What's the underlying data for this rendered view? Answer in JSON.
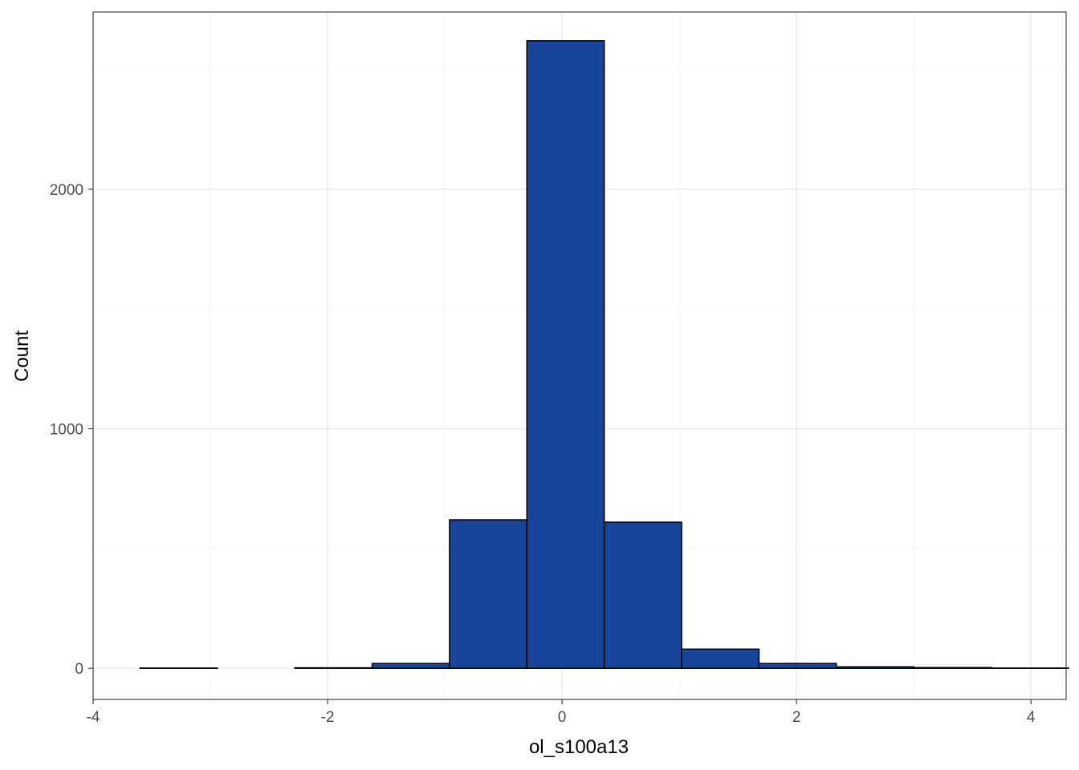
{
  "chart_data": {
    "type": "bar",
    "title": "",
    "xlabel": "ol_s100a13",
    "ylabel": "Count",
    "xlim": [
      -4,
      4.3
    ],
    "ylim": [
      -130,
      2740
    ],
    "x_ticks": [
      -4,
      -2,
      0,
      2,
      4
    ],
    "x_tick_labels": [
      "-4",
      "-2",
      "0",
      "2",
      "4"
    ],
    "y_ticks": [
      0,
      1000,
      2000
    ],
    "y_tick_labels": [
      "0",
      "1000",
      "2000"
    ],
    "grid": true,
    "legend": "none",
    "bin_width": 0.66,
    "bins": [
      {
        "x0": -3.6,
        "x1": -2.94,
        "count": 1
      },
      {
        "x0": -2.94,
        "x1": -2.28,
        "count": 0
      },
      {
        "x0": -2.28,
        "x1": -1.62,
        "count": 2
      },
      {
        "x0": -1.62,
        "x1": -0.96,
        "count": 20
      },
      {
        "x0": -0.96,
        "x1": -0.3,
        "count": 620
      },
      {
        "x0": -0.3,
        "x1": 0.36,
        "count": 2620
      },
      {
        "x0": 0.36,
        "x1": 1.02,
        "count": 610
      },
      {
        "x0": 1.02,
        "x1": 1.68,
        "count": 80
      },
      {
        "x0": 1.68,
        "x1": 2.34,
        "count": 20
      },
      {
        "x0": 2.34,
        "x1": 3.0,
        "count": 6
      },
      {
        "x0": 3.0,
        "x1": 3.66,
        "count": 3
      },
      {
        "x0": 3.66,
        "x1": 4.32,
        "count": 1
      }
    ],
    "colors": {
      "fill": "#18449A",
      "outline": "#000000",
      "grid_major": "#EBEBEB",
      "grid_minor": "#F5F5F5",
      "panel_border": "#333333",
      "tick_text": "#4D4D4D"
    }
  }
}
